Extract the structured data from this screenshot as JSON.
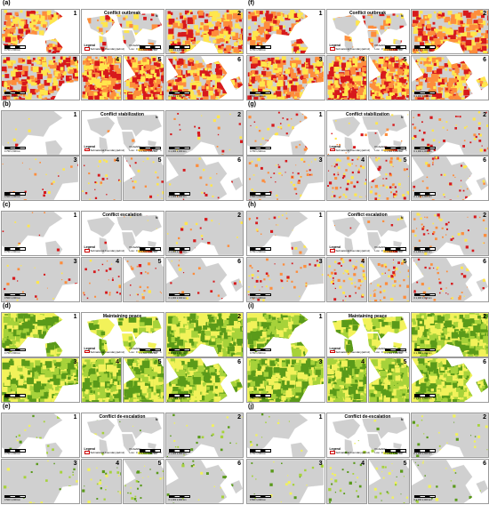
{
  "panels": [
    {
      "letter": "(a)",
      "title": "Conflict outbreak",
      "scheme": "red",
      "density": "high"
    },
    {
      "letter": "(b)",
      "title": "Conflict stabilization",
      "scheme": "red",
      "density": "low"
    },
    {
      "letter": "(c)",
      "title": "Conflict escalation",
      "scheme": "red",
      "density": "low"
    },
    {
      "letter": "(d)",
      "title": "Maintaining peace",
      "scheme": "green",
      "density": "full"
    },
    {
      "letter": "(e)",
      "title": "Conflict de-escalation",
      "scheme": "green",
      "density": "low"
    },
    {
      "letter": "(f)",
      "title": "Conflict outbreak",
      "scheme": "red",
      "density": "high"
    },
    {
      "letter": "(g)",
      "title": "Conflict stabilization",
      "scheme": "red",
      "density": "medium"
    },
    {
      "letter": "(h)",
      "title": "Conflict escalation",
      "scheme": "red",
      "density": "medium"
    },
    {
      "letter": "(i)",
      "title": "Maintaining peace",
      "scheme": "green",
      "density": "full"
    },
    {
      "letter": "(j)",
      "title": "Conflict de-escalation",
      "scheme": "green",
      "density": "low"
    }
  ],
  "tile_numbers": [
    "1",
    "2",
    "3",
    "4",
    "5",
    "6"
  ],
  "legend": {
    "title": "Legend",
    "item": "Subnational boundary(adm1)",
    "prob_title": "Probability",
    "low": "Low : 0",
    "high": "High : 1"
  },
  "scales": {
    "t1": "0   750   1,500 km",
    "t2": "0   1,000   2,000 km",
    "t3": "0   500   1,000 km",
    "t4": "0   1,000   2,000 km",
    "t5": "0   1,000   2,000 km",
    "t6": "0   1,000   2,000 km",
    "center": "0   2,500   5,000 km"
  },
  "north": "N",
  "colors": {
    "land": "#d0d0d0",
    "sea": "#ffffff",
    "red_hi": "#d7191c",
    "red_mid": "#fd8d3c",
    "red_lo": "#ffe64d",
    "green_hi": "#5a9a1a",
    "green_mid": "#a6d23a",
    "green_lo": "#f2f25a"
  }
}
